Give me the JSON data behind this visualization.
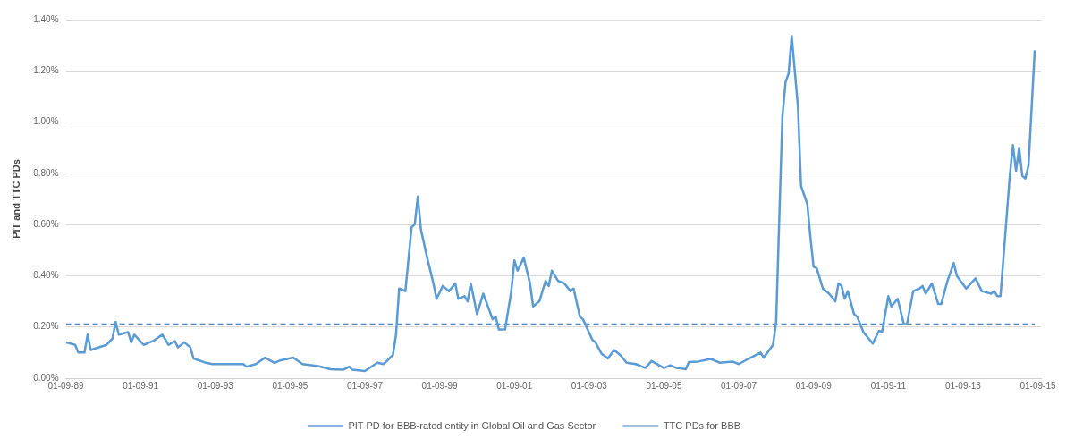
{
  "chart_data": {
    "type": "line",
    "ylabel": "PIT and TTC PDs",
    "legend": "bottom",
    "grid": "y",
    "line_style": "solid",
    "marker": "none",
    "xlim": [
      "1989-09-01",
      "2015-10-01"
    ],
    "xticks": [
      {
        "value": "1989-09-01",
        "label": "01-09-89"
      },
      {
        "value": "1991-09-01",
        "label": "01-09-91"
      },
      {
        "value": "1993-09-01",
        "label": "01-09-93"
      },
      {
        "value": "1995-09-01",
        "label": "01-09-95"
      },
      {
        "value": "1997-09-01",
        "label": "01-09-97"
      },
      {
        "value": "1999-09-01",
        "label": "01-09-99"
      },
      {
        "value": "2001-09-01",
        "label": "01-09-01"
      },
      {
        "value": "2003-09-01",
        "label": "01-09-03"
      },
      {
        "value": "2005-09-01",
        "label": "01-09-05"
      },
      {
        "value": "2007-09-01",
        "label": "01-09-07"
      },
      {
        "value": "2009-09-01",
        "label": "01-09-09"
      },
      {
        "value": "2011-09-01",
        "label": "01-09-11"
      },
      {
        "value": "2013-09-01",
        "label": "01-09-13"
      },
      {
        "value": "2015-09-01",
        "label": "01-09-15"
      }
    ],
    "ylim": [
      0,
      1.4
    ],
    "yticks": [
      {
        "value": 0,
        "label": "0.00%"
      },
      {
        "value": 0.2,
        "label": "0.20%"
      },
      {
        "value": 0.4,
        "label": "0.40%"
      },
      {
        "value": 0.6,
        "label": "0.60%"
      },
      {
        "value": 0.8,
        "label": "0.80%"
      },
      {
        "value": 1.0,
        "label": "1.00%"
      },
      {
        "value": 1.2,
        "label": "1.20%"
      },
      {
        "value": 1.4,
        "label": "1.40%"
      }
    ],
    "ref_lines": [
      {
        "axis": "y",
        "value": 0.21,
        "label": "TTC PDs for BBB",
        "color": "#4a86c8",
        "line_style": "dashed"
      }
    ],
    "series": [
      {
        "name": "PIT PD for BBB-rated entity in Global Oil and Gas Sector",
        "color": "#5b9bd5",
        "x": [
          "1989-09",
          "1989-12",
          "1990-01",
          "1990-03",
          "1990-04",
          "1990-05",
          "1990-10",
          "1990-12",
          "1991-01",
          "1991-02",
          "1991-05",
          "1991-06",
          "1991-07",
          "1991-10",
          "1992-01",
          "1992-04",
          "1992-06",
          "1992-08",
          "1992-09",
          "1992-11",
          "1993-01",
          "1993-02",
          "1993-06",
          "1993-08",
          "1994-06",
          "1994-07",
          "1994-10",
          "1995-01",
          "1995-04",
          "1995-06",
          "1995-10",
          "1996-01",
          "1996-06",
          "1996-10",
          "1997-02",
          "1997-04",
          "1997-05",
          "1997-09",
          "1998-01",
          "1998-03",
          "1998-06",
          "1998-07",
          "1998-08",
          "1998-10",
          "1998-12",
          "1999-01",
          "1999-02",
          "1999-03",
          "1999-05",
          "1999-07",
          "1999-08",
          "1999-10",
          "1999-12",
          "2000-02",
          "2000-03",
          "2000-05",
          "2000-06",
          "2000-07",
          "2000-09",
          "2000-11",
          "2001-02",
          "2001-03",
          "2001-04",
          "2001-06",
          "2001-08",
          "2001-09",
          "2001-10",
          "2001-12",
          "2002-02",
          "2002-03",
          "2002-05",
          "2002-07",
          "2002-08",
          "2002-09",
          "2002-11",
          "2003-01",
          "2003-03",
          "2003-04",
          "2003-06",
          "2003-07",
          "2003-10",
          "2003-11",
          "2004-01",
          "2004-03",
          "2004-05",
          "2004-07",
          "2004-09",
          "2004-12",
          "2005-03",
          "2005-05",
          "2005-09",
          "2005-11",
          "2006-01",
          "2006-04",
          "2006-05",
          "2006-08",
          "2006-12",
          "2007-03",
          "2007-07",
          "2007-09",
          "2007-12",
          "2008-04",
          "2008-05",
          "2008-08",
          "2008-09",
          "2008-11",
          "2008-12",
          "2009-01",
          "2009-02",
          "2009-04",
          "2009-05",
          "2009-07",
          "2009-08",
          "2009-09",
          "2009-10",
          "2009-12",
          "2010-02",
          "2010-04",
          "2010-05",
          "2010-06",
          "2010-07",
          "2010-08",
          "2010-10",
          "2010-11",
          "2011-01",
          "2011-04",
          "2011-06",
          "2011-07",
          "2011-09",
          "2011-10",
          "2011-12",
          "2012-02",
          "2012-03",
          "2012-05",
          "2012-07",
          "2012-08",
          "2012-09",
          "2012-11",
          "2013-01",
          "2013-02",
          "2013-04",
          "2013-06",
          "2013-07",
          "2013-10",
          "2014-01",
          "2014-03",
          "2014-06",
          "2014-07",
          "2014-08",
          "2014-09",
          "2014-12",
          "2015-01",
          "2015-02",
          "2015-03",
          "2015-04",
          "2015-05",
          "2015-06",
          "2015-08"
        ],
        "values": [
          0.14,
          0.13,
          0.1,
          0.1,
          0.17,
          0.11,
          0.13,
          0.155,
          0.22,
          0.17,
          0.18,
          0.14,
          0.17,
          0.13,
          0.145,
          0.17,
          0.13,
          0.145,
          0.12,
          0.14,
          0.12,
          0.077,
          0.06,
          0.055,
          0.055,
          0.045,
          0.055,
          0.08,
          0.06,
          0.07,
          0.08,
          0.055,
          0.047,
          0.035,
          0.033,
          0.045,
          0.033,
          0.028,
          0.06,
          0.055,
          0.09,
          0.17,
          0.35,
          0.34,
          0.59,
          0.6,
          0.71,
          0.58,
          0.47,
          0.37,
          0.31,
          0.36,
          0.34,
          0.37,
          0.31,
          0.32,
          0.3,
          0.37,
          0.25,
          0.33,
          0.23,
          0.24,
          0.19,
          0.19,
          0.34,
          0.46,
          0.42,
          0.47,
          0.37,
          0.28,
          0.3,
          0.38,
          0.36,
          0.42,
          0.38,
          0.37,
          0.34,
          0.35,
          0.24,
          0.23,
          0.15,
          0.14,
          0.095,
          0.077,
          0.11,
          0.09,
          0.06,
          0.055,
          0.04,
          0.067,
          0.04,
          0.05,
          0.04,
          0.035,
          0.063,
          0.065,
          0.075,
          0.06,
          0.065,
          0.055,
          0.075,
          0.1,
          0.08,
          0.13,
          0.22,
          1.02,
          1.155,
          1.19,
          1.335,
          1.06,
          0.75,
          0.68,
          0.55,
          0.435,
          0.43,
          0.35,
          0.33,
          0.3,
          0.37,
          0.36,
          0.31,
          0.34,
          0.25,
          0.24,
          0.18,
          0.135,
          0.185,
          0.18,
          0.32,
          0.28,
          0.31,
          0.21,
          0.21,
          0.34,
          0.35,
          0.36,
          0.33,
          0.37,
          0.29,
          0.29,
          0.38,
          0.45,
          0.4,
          0.35,
          0.39,
          0.34,
          0.33,
          0.34,
          0.32,
          0.32,
          0.79,
          0.91,
          0.81,
          0.9,
          0.79,
          0.78,
          0.83,
          1.28
        ]
      }
    ]
  }
}
